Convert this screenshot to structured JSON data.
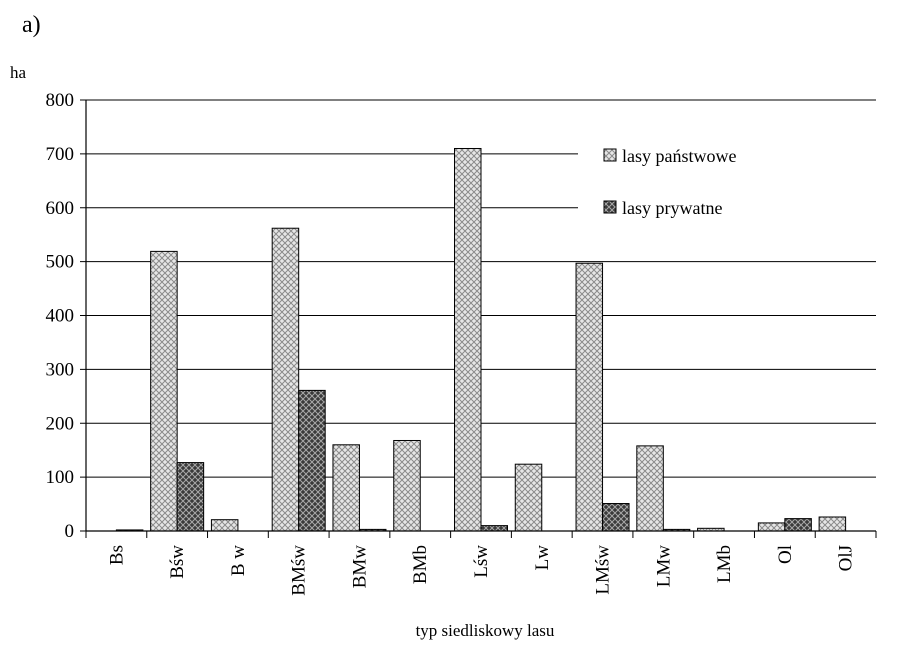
{
  "panel_label": "a)",
  "chart_data": {
    "type": "bar",
    "title": "",
    "ylabel": "ha",
    "xlabel": "typ siedliskowy lasu",
    "ylim": [
      0,
      800
    ],
    "yticks": [
      0,
      100,
      200,
      300,
      400,
      500,
      600,
      700,
      800
    ],
    "grid": true,
    "legend_position": "top-right",
    "categories": [
      "Bs",
      "Bśw",
      "B w",
      "BMśw",
      "BMw",
      "BMb",
      "Lśw",
      "Lw",
      "LMśw",
      "LMw",
      "LMb",
      "Ol",
      "OlJ"
    ],
    "series": [
      {
        "name": "lasy państwowe",
        "pattern": "light-crosshatch",
        "values": [
          0,
          519,
          21,
          562,
          160,
          168,
          710,
          124,
          497,
          158,
          5,
          15,
          26
        ]
      },
      {
        "name": "lasy prywatne",
        "pattern": "dark-crosshatch",
        "values": [
          2,
          127,
          0,
          261,
          3,
          0,
          10,
          0,
          51,
          3,
          0,
          23,
          0
        ]
      }
    ]
  }
}
